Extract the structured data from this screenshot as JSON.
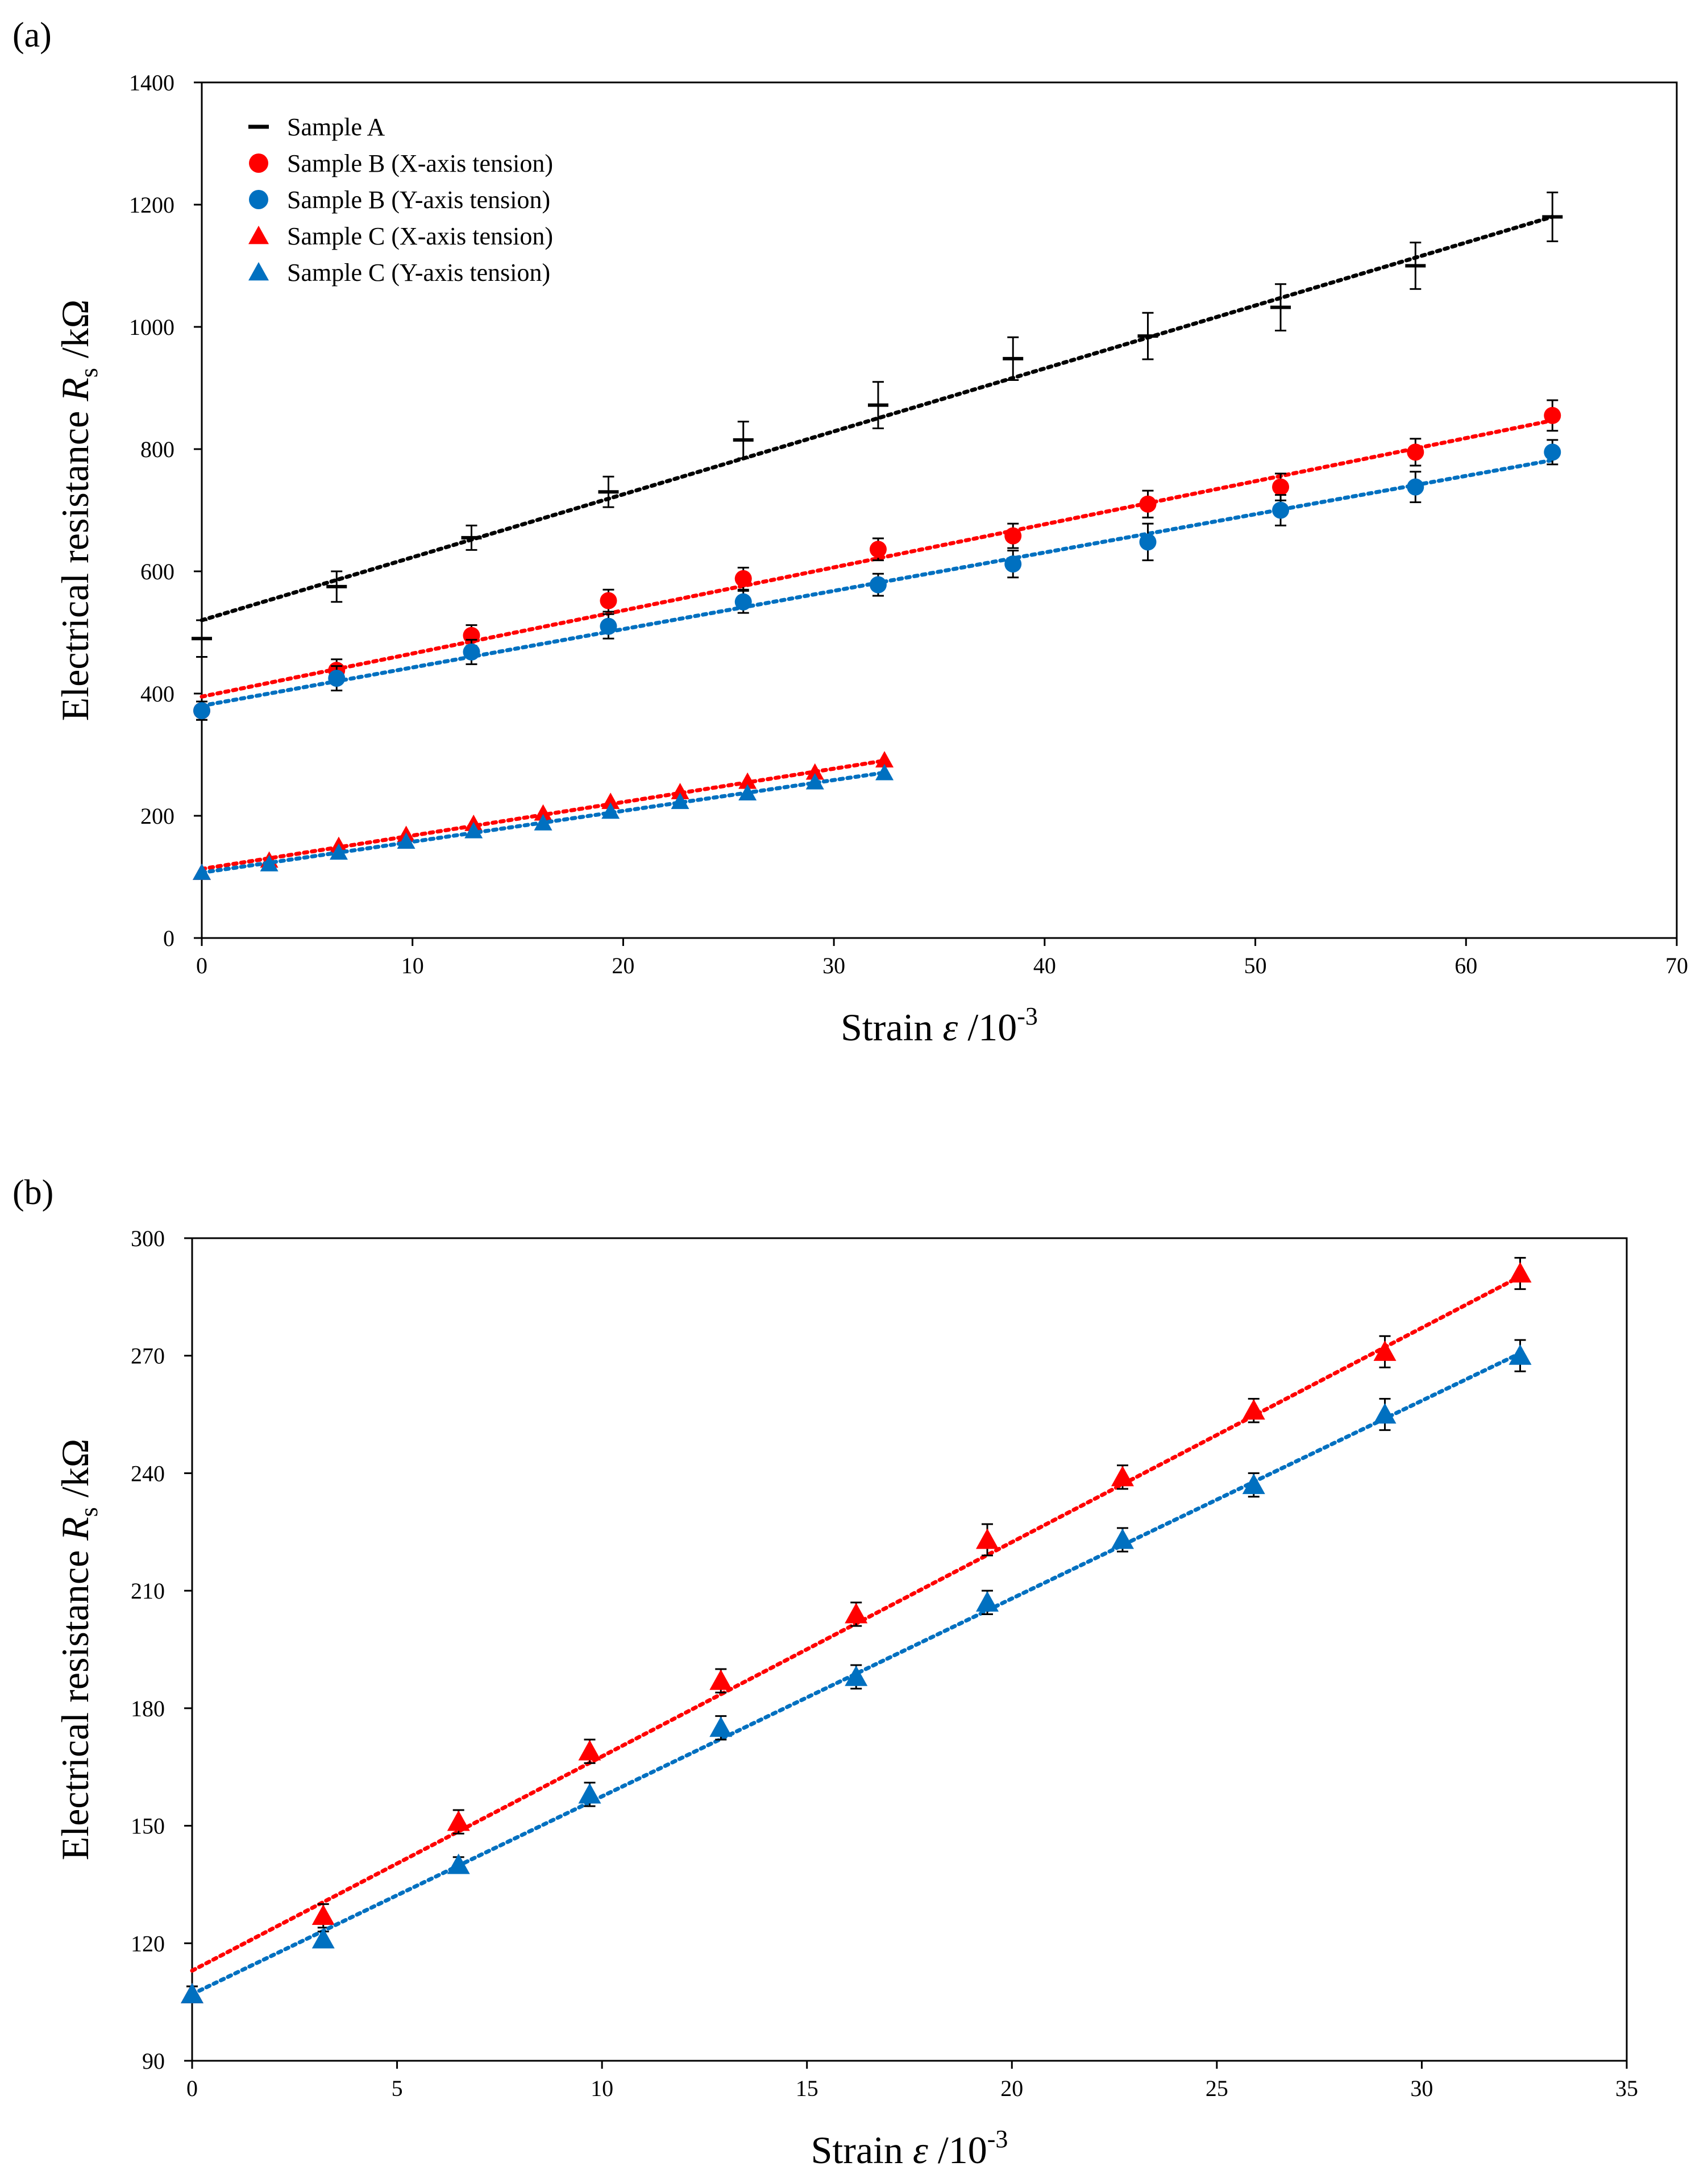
{
  "chart_data": [
    {
      "panel": "(a)",
      "type": "scatter",
      "xlabel": {
        "prefix": "Strain ",
        "symbol": "ε",
        "suffix": " /10",
        "sup": "-3"
      },
      "ylabel": {
        "prefix": "Electrical resistance ",
        "symbol": "R",
        "sub": "s",
        "suffix": " /kΩ"
      },
      "xlim": [
        0,
        70
      ],
      "ylim": [
        0,
        1400
      ],
      "xticks": [
        0,
        10,
        20,
        30,
        40,
        50,
        60,
        70
      ],
      "yticks": [
        0,
        200,
        400,
        600,
        800,
        1000,
        1200,
        1400
      ],
      "series": [
        {
          "name": "Sample A",
          "marker": "dash",
          "color": "#000000",
          "x": [
            0,
            6.4,
            12.8,
            19.3,
            25.7,
            32.1,
            38.5,
            44.9,
            51.2,
            57.6,
            64.1
          ],
          "y": [
            490,
            575,
            655,
            730,
            815,
            872,
            948,
            985,
            1032,
            1100,
            1180
          ],
          "err": [
            30,
            25,
            20,
            25,
            30,
            38,
            35,
            38,
            38,
            38,
            40
          ],
          "trend": {
            "slope": 10.3,
            "intercept": 520
          }
        },
        {
          "name": "Sample B (X-axis tension)",
          "marker": "circle",
          "color": "#ff0000",
          "x": [
            0,
            6.4,
            12.8,
            19.3,
            25.7,
            32.1,
            38.5,
            44.9,
            51.2,
            57.6,
            64.1
          ],
          "y": [
            372,
            438,
            495,
            552,
            588,
            636,
            658,
            710,
            738,
            795,
            855
          ],
          "err": [
            15,
            18,
            17,
            18,
            18,
            18,
            20,
            22,
            22,
            22,
            25
          ],
          "trend": {
            "slope": 7.05,
            "intercept": 395
          }
        },
        {
          "name": "Sample B (Y-axis tension)",
          "marker": "circle",
          "color": "#0070c0",
          "x": [
            0,
            6.4,
            12.8,
            19.3,
            25.7,
            32.1,
            38.5,
            44.9,
            51.2,
            57.6,
            64.1
          ],
          "y": [
            372,
            425,
            468,
            510,
            550,
            578,
            612,
            648,
            700,
            738,
            795
          ],
          "err": [
            15,
            20,
            20,
            20,
            18,
            18,
            22,
            30,
            25,
            25,
            20
          ],
          "trend": {
            "slope": 6.27,
            "intercept": 380
          }
        },
        {
          "name": "Sample C (X-axis tension)",
          "marker": "triangle",
          "color": "#ff0000",
          "x": [
            0,
            3.2,
            6.5,
            9.7,
            12.9,
            16.2,
            19.4,
            22.7,
            25.9,
            29.1,
            32.4
          ],
          "y": [
            107,
            127,
            151,
            169,
            187,
            204,
            223,
            239,
            256,
            271,
            291
          ],
          "err": [
            0,
            0,
            0,
            0,
            0,
            0,
            0,
            0,
            0,
            0,
            0
          ],
          "trend": {
            "slope": 5.47,
            "intercept": 113
          }
        },
        {
          "name": "Sample C (Y-axis tension)",
          "marker": "triangle",
          "color": "#0070c0",
          "x": [
            0,
            3.2,
            6.5,
            9.7,
            12.9,
            16.2,
            19.4,
            22.7,
            25.9,
            29.1,
            32.4
          ],
          "y": [
            107,
            121,
            140,
            158,
            175,
            188,
            207,
            223,
            237,
            255,
            270
          ],
          "err": [
            0,
            0,
            0,
            0,
            0,
            0,
            0,
            0,
            0,
            0,
            0
          ],
          "trend": {
            "slope": 5.05,
            "intercept": 107
          }
        }
      ],
      "legend_position": "top-left"
    },
    {
      "panel": "(b)",
      "type": "scatter",
      "xlabel": {
        "prefix": "Strain ",
        "symbol": "ε",
        "suffix": " /10",
        "sup": "-3"
      },
      "ylabel": {
        "prefix": "Electrical resistance ",
        "symbol": "R",
        "sub": "s",
        "suffix": " /kΩ"
      },
      "xlim": [
        0,
        35
      ],
      "ylim": [
        90,
        300
      ],
      "xticks": [
        0,
        5,
        10,
        15,
        20,
        25,
        30,
        35
      ],
      "yticks": [
        90,
        120,
        150,
        180,
        210,
        240,
        270,
        300
      ],
      "series": [
        {
          "name": "Sample C (X-axis tension)",
          "marker": "triangle",
          "color": "#ff0000",
          "x": [
            0,
            3.2,
            6.5,
            9.7,
            12.9,
            16.2,
            19.4,
            22.7,
            25.9,
            29.1,
            32.4
          ],
          "y": [
            107,
            127,
            151,
            169,
            187,
            204,
            223,
            239,
            256,
            271,
            291
          ],
          "err": [
            2,
            3,
            3,
            3,
            3,
            3,
            4,
            3,
            3,
            4,
            4
          ],
          "trend": {
            "slope": 5.47,
            "intercept": 113
          }
        },
        {
          "name": "Sample C (Y-axis tension)",
          "marker": "triangle",
          "color": "#0070c0",
          "x": [
            0,
            3.2,
            6.5,
            9.7,
            12.9,
            16.2,
            19.4,
            22.7,
            25.9,
            29.1,
            32.4
          ],
          "y": [
            107,
            121,
            140,
            158,
            175,
            188,
            207,
            223,
            237,
            255,
            270
          ],
          "err": [
            2,
            2,
            2,
            3,
            3,
            3,
            3,
            3,
            3,
            4,
            4
          ],
          "trend": {
            "slope": 5.05,
            "intercept": 107
          }
        }
      ],
      "legend_position": "none"
    }
  ]
}
